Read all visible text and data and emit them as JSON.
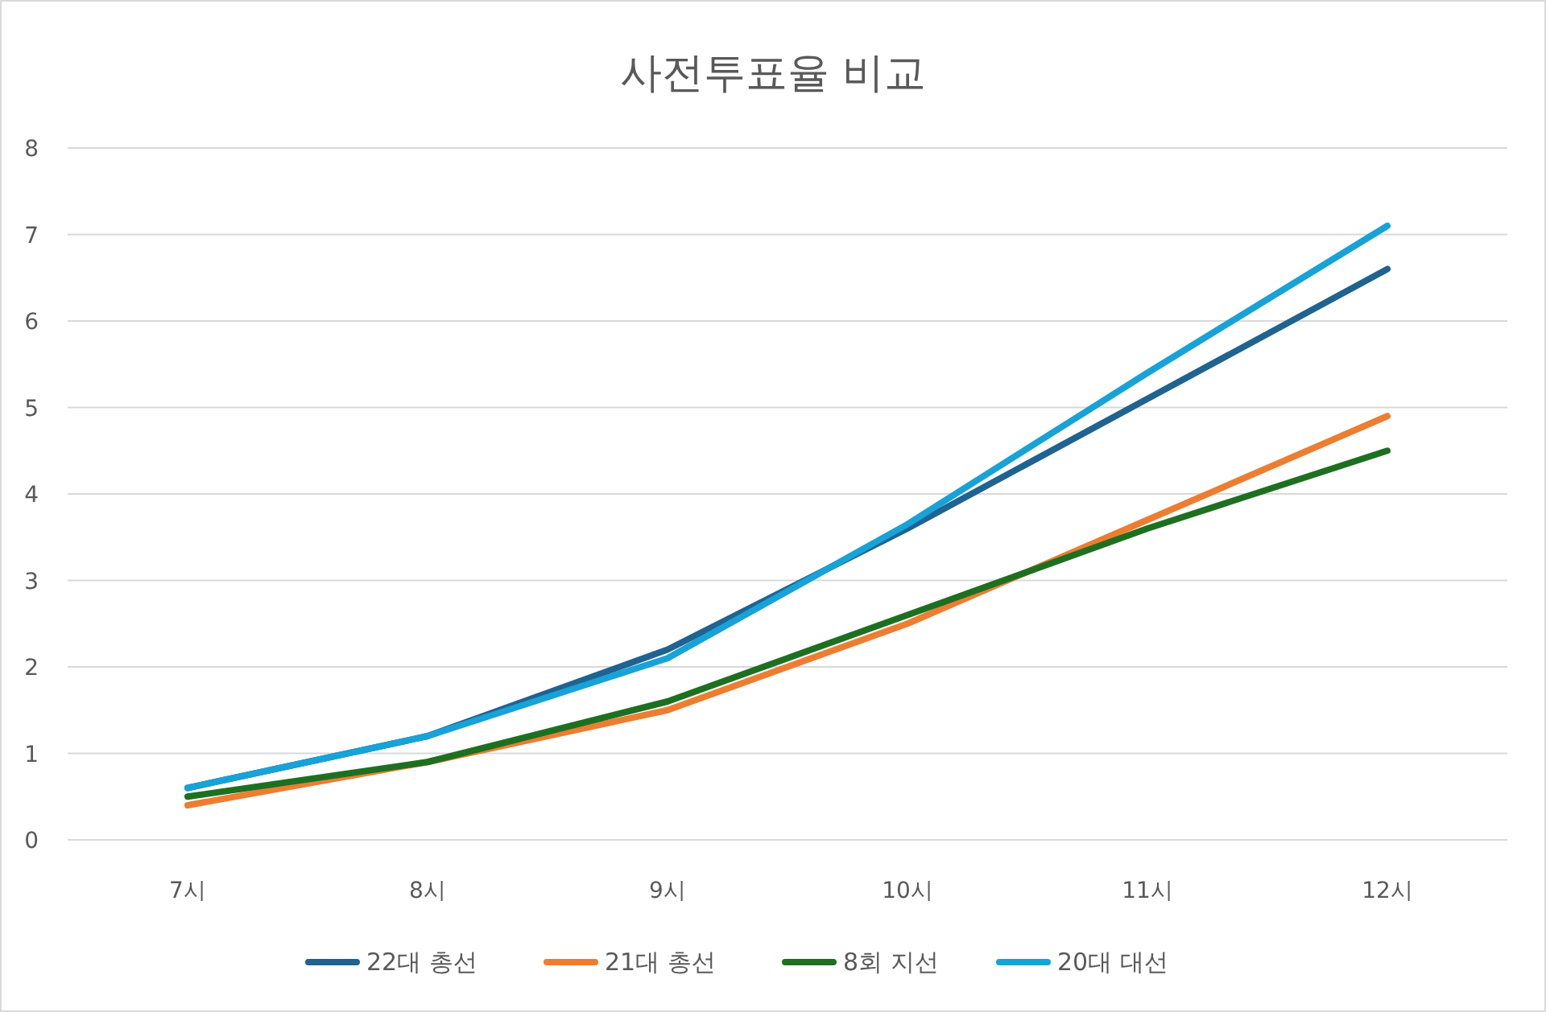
{
  "chart_data": {
    "type": "line",
    "title": "사전투표율 비교",
    "categories": [
      "7시",
      "8시",
      "9시",
      "10시",
      "11시",
      "12시"
    ],
    "series": [
      {
        "name": "22대 총선",
        "color": "#1f6391",
        "values": [
          0.6,
          1.2,
          2.2,
          3.6,
          5.1,
          6.6
        ]
      },
      {
        "name": "21대 총선",
        "color": "#ed7d31",
        "values": [
          0.4,
          0.9,
          1.5,
          2.5,
          3.7,
          4.9
        ]
      },
      {
        "name": "8회 지선",
        "color": "#1e7021",
        "values": [
          0.5,
          0.9,
          1.6,
          2.6,
          3.6,
          4.5
        ]
      },
      {
        "name": "20대 대선",
        "color": "#17a2d8",
        "values": [
          0.6,
          1.2,
          2.1,
          3.65,
          5.4,
          7.1
        ]
      }
    ],
    "ylim": [
      0,
      8
    ],
    "yticks": [
      0,
      1,
      2,
      3,
      4,
      5,
      6,
      7,
      8
    ],
    "grid": "y",
    "legend": "bottom",
    "marker": "none",
    "line_style": "solid"
  }
}
